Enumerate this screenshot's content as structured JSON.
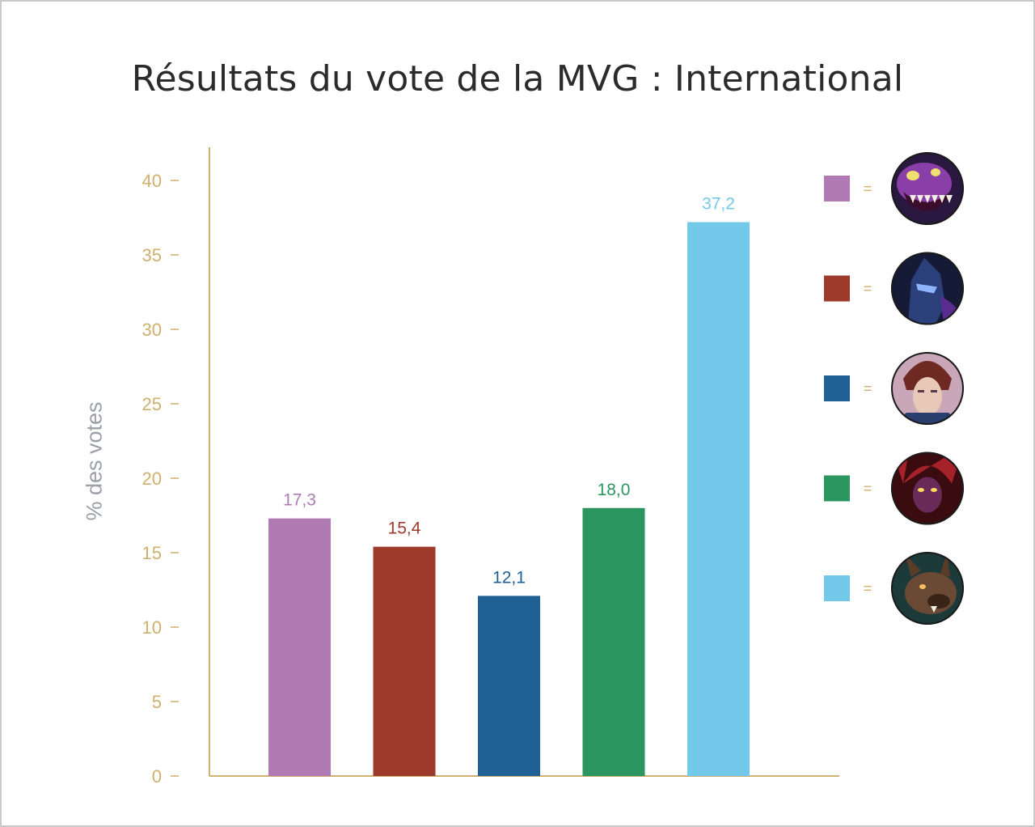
{
  "chart_data": {
    "type": "bar",
    "title": "Résultats du vote de la MVG : International",
    "ylabel": "% des votes",
    "ylim": [
      0,
      42.5
    ],
    "yticks": [
      0,
      5,
      10,
      15,
      20,
      25,
      30,
      35,
      40
    ],
    "values": [
      17.3,
      15.4,
      12.1,
      18.0,
      37.2
    ],
    "value_labels": [
      "17,3",
      "15,4",
      "12,1",
      "18,0",
      "37,2"
    ],
    "colors": [
      "#b07bb5",
      "#9c3a2c",
      "#206094",
      "#2c9660",
      "#73c9ea"
    ],
    "axis_color": "#cfb06e",
    "legend_position": "right",
    "legend": [
      {
        "color": "#b07bb5",
        "symbol": "=",
        "icon": "purple-monster-portrait-icon"
      },
      {
        "color": "#9c3a2c",
        "symbol": "=",
        "icon": "dark-armored-champion-portrait-icon"
      },
      {
        "color": "#206094",
        "symbol": "=",
        "icon": "helmeted-warrior-portrait-icon"
      },
      {
        "color": "#2c9660",
        "symbol": "=",
        "icon": "red-horned-demon-portrait-icon"
      },
      {
        "color": "#73c9ea",
        "symbol": "=",
        "icon": "werewolf-portrait-icon"
      }
    ]
  }
}
